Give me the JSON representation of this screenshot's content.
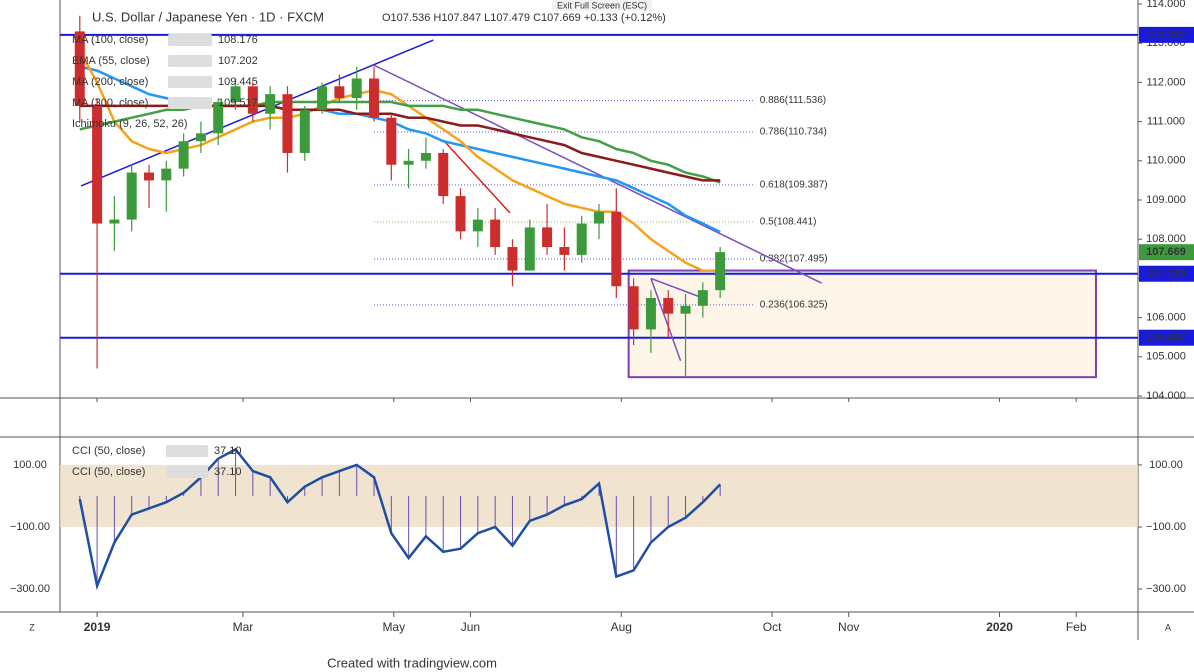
{
  "ui": {
    "exit": "Exit Full Screen (ESC)",
    "footer": "Created with tradingview.com",
    "left_btn": "Z",
    "right_btn": "A"
  },
  "chart_data": [
    {
      "type": "candlestick",
      "title": "U.S. Dollar / Japanese Yen · 1D · FXCM",
      "subtitle": "O107.536 H107.847 L107.479 C107.669 +0.133 (+0.12%)",
      "x": [
        -7,
        0,
        7,
        14,
        21,
        28,
        35,
        42,
        49,
        56,
        63,
        70,
        77,
        84,
        91,
        98,
        105,
        112,
        119,
        126,
        133,
        140,
        147,
        154,
        161,
        168,
        175,
        182,
        189,
        196,
        203,
        210,
        217,
        224,
        231,
        238,
        245,
        252
      ],
      "open": [
        113.3,
        111.4,
        108.4,
        108.5,
        109.7,
        109.5,
        109.8,
        110.5,
        110.7,
        111.5,
        111.9,
        111.2,
        111.7,
        110.2,
        111.3,
        111.9,
        111.6,
        112.1,
        111.1,
        109.9,
        110.0,
        110.2,
        109.1,
        108.2,
        108.5,
        107.8,
        107.2,
        108.3,
        107.8,
        107.6,
        108.4,
        108.7,
        106.8,
        105.7,
        106.5,
        106.1,
        106.3,
        106.7
      ],
      "high": [
        113.7,
        111.6,
        109.1,
        109.9,
        109.9,
        110.0,
        110.7,
        111.0,
        111.6,
        112.1,
        112.0,
        111.9,
        111.9,
        111.4,
        112.0,
        112.2,
        112.4,
        112.4,
        111.2,
        110.3,
        110.6,
        110.3,
        109.3,
        108.8,
        108.8,
        108.0,
        108.5,
        108.9,
        108.3,
        108.6,
        108.9,
        109.3,
        107.0,
        106.7,
        106.7,
        106.6,
        106.9,
        107.8
      ],
      "low": [
        111.0,
        104.7,
        107.7,
        108.2,
        108.8,
        108.7,
        109.6,
        110.2,
        110.4,
        111.3,
        111.0,
        110.8,
        109.7,
        110.0,
        111.2,
        111.5,
        111.3,
        111.0,
        109.5,
        109.3,
        109.8,
        108.9,
        108.0,
        107.8,
        107.6,
        106.8,
        107.2,
        107.6,
        107.2,
        107.4,
        108.0,
        106.5,
        105.3,
        105.1,
        105.5,
        104.5,
        106.0,
        106.5
      ],
      "close": [
        111.4,
        108.4,
        108.5,
        109.7,
        109.5,
        109.8,
        110.5,
        110.7,
        111.5,
        111.9,
        111.2,
        111.7,
        110.2,
        111.3,
        111.9,
        111.6,
        112.1,
        111.1,
        109.9,
        110.0,
        110.2,
        109.1,
        108.2,
        108.5,
        107.8,
        107.2,
        108.3,
        107.8,
        107.6,
        108.4,
        108.7,
        106.8,
        105.7,
        106.5,
        106.1,
        106.3,
        106.7,
        107.669
      ],
      "up_color": "#3c9a3c",
      "down_color": "#cc2e2e",
      "series": [
        {
          "name": "MA (100, close)",
          "legend_value": 108.176,
          "color": "#2196f3",
          "values": [
            112.4,
            112.3,
            112.1,
            111.9,
            111.7,
            111.6,
            111.5,
            111.4,
            111.4,
            111.4,
            111.4,
            111.4,
            111.3,
            111.3,
            111.3,
            111.2,
            111.2,
            111.1,
            111.0,
            110.8,
            110.7,
            110.5,
            110.4,
            110.3,
            110.2,
            110.1,
            110.0,
            109.9,
            109.8,
            109.7,
            109.6,
            109.5,
            109.3,
            109.1,
            108.9,
            108.6,
            108.4,
            108.18
          ]
        },
        {
          "name": "EMA (55, close)",
          "legend_value": 107.202,
          "color": "#f7a21b",
          "values": [
            112.8,
            112.0,
            111.0,
            110.5,
            110.3,
            110.2,
            110.3,
            110.4,
            110.6,
            110.8,
            111.0,
            111.1,
            111.1,
            111.2,
            111.4,
            111.6,
            111.7,
            111.8,
            111.7,
            111.4,
            111.1,
            110.8,
            110.5,
            110.1,
            109.8,
            109.5,
            109.3,
            109.1,
            108.9,
            108.8,
            108.7,
            108.7,
            108.4,
            108.0,
            107.7,
            107.4,
            107.2,
            107.2
          ]
        },
        {
          "name": "MA (200, close)",
          "legend_value": 109.445,
          "color": "#43a047",
          "values": [
            110.8,
            110.9,
            111.0,
            111.1,
            111.2,
            111.3,
            111.3,
            111.4,
            111.4,
            111.4,
            111.4,
            111.5,
            111.5,
            111.5,
            111.5,
            111.5,
            111.5,
            111.5,
            111.5,
            111.4,
            111.4,
            111.4,
            111.3,
            111.3,
            111.2,
            111.1,
            111.0,
            110.9,
            110.8,
            110.6,
            110.5,
            110.3,
            110.2,
            110.0,
            109.9,
            109.7,
            109.6,
            109.45
          ]
        },
        {
          "name": "MA (300, close)",
          "legend_value": 109.517,
          "color": "#8b1a1a",
          "values": [
            111.4,
            111.4,
            111.4,
            111.4,
            111.4,
            111.4,
            111.4,
            111.4,
            111.4,
            111.4,
            111.4,
            111.4,
            111.3,
            111.3,
            111.3,
            111.3,
            111.2,
            111.2,
            111.2,
            111.1,
            111.1,
            111.0,
            110.9,
            110.9,
            110.8,
            110.7,
            110.6,
            110.5,
            110.4,
            110.2,
            110.1,
            110.0,
            109.9,
            109.8,
            109.7,
            109.6,
            109.5,
            109.5
          ]
        }
      ],
      "studies": [
        "Ichimoku (9, 26, 52, 26)"
      ],
      "hlines": [
        {
          "value": 113.212,
          "color": "#1a1adb"
        },
        {
          "value": 107.119,
          "color": "#1a1adb"
        },
        {
          "value": 105.487,
          "color": "#1a1adb"
        }
      ],
      "last_price": 107.669,
      "last_color": "#3c9a3c",
      "fib_range": [
        112,
        266
      ],
      "fib": [
        {
          "value": 111.536,
          "label": "0.886(111.536)"
        },
        {
          "value": 110.734,
          "label": "0.786(110.734)"
        },
        {
          "value": 109.387,
          "label": "0.618(109.387)"
        },
        {
          "value": 108.441,
          "label": "0.5(108.441)"
        },
        {
          "value": 107.495,
          "label": "0.382(107.495)"
        },
        {
          "value": 106.325,
          "label": "0.236(106.325)"
        }
      ],
      "trendlines": [
        {
          "x": [
            -6.5,
            136
          ],
          "y": [
            109.36,
            113.08
          ],
          "color": "#1a1adb"
        },
        {
          "x": [
            112,
            293
          ],
          "y": [
            112.44,
            106.88
          ],
          "color": "#7b4fc0"
        },
        {
          "x": [
            140,
            167
          ],
          "y": [
            110.53,
            108.67
          ],
          "color": "#e02020"
        },
        {
          "x": [
            224,
            245
          ],
          "y": [
            107.0,
            106.5
          ],
          "color": "#7b4fc0"
        },
        {
          "x": [
            224,
            236
          ],
          "y": [
            107.0,
            104.9
          ],
          "color": "#7b4fc0"
        }
      ],
      "box": {
        "x": [
          215,
          404
        ],
        "y": [
          104.48,
          107.2
        ],
        "color": "#7e3fb0"
      },
      "xlim": [
        -15,
        421
      ],
      "xticks": [
        {
          "value": 0,
          "label": "2019"
        },
        {
          "value": 59,
          "label": "Mar"
        },
        {
          "value": 120,
          "label": "May"
        },
        {
          "value": 151,
          "label": "Jun"
        },
        {
          "value": 212,
          "label": "Aug"
        },
        {
          "value": 273,
          "label": "Oct"
        },
        {
          "value": 304,
          "label": "Nov"
        },
        {
          "value": 365,
          "label": "2020"
        },
        {
          "value": 396,
          "label": "Feb"
        }
      ],
      "ylim": [
        104,
        114
      ],
      "yticks": [
        {
          "value": 104,
          "label": "104.000"
        },
        {
          "value": 105,
          "label": "105.000"
        },
        {
          "value": 106,
          "label": "106.000"
        },
        {
          "value": 107,
          "label": "107.000"
        },
        {
          "value": 108,
          "label": "108.000"
        },
        {
          "value": 109,
          "label": "109.000"
        },
        {
          "value": 110,
          "label": "110.000"
        },
        {
          "value": 111,
          "label": "111.000"
        },
        {
          "value": 112,
          "label": "112.000"
        },
        {
          "value": 113,
          "label": "113.000"
        },
        {
          "value": 114,
          "label": "114.000"
        }
      ]
    },
    {
      "type": "line",
      "x": [
        -7,
        0,
        7,
        14,
        21,
        28,
        35,
        42,
        49,
        56,
        63,
        70,
        77,
        84,
        91,
        98,
        105,
        112,
        119,
        126,
        133,
        140,
        147,
        154,
        161,
        168,
        175,
        182,
        189,
        196,
        203,
        210,
        217,
        224,
        231,
        238,
        245,
        252
      ],
      "series": [
        {
          "name": "CCI (50, close)",
          "legend_value": "37.10",
          "color": "#1e4fa3",
          "style": "line",
          "values": [
            -10,
            -290,
            -150,
            -60,
            -40,
            -20,
            10,
            60,
            120,
            150,
            80,
            60,
            -20,
            30,
            60,
            80,
            100,
            60,
            -120,
            -200,
            -130,
            -180,
            -170,
            -120,
            -100,
            -160,
            -80,
            -60,
            -30,
            -10,
            40,
            -260,
            -240,
            -150,
            -100,
            -70,
            -20,
            37.1
          ]
        },
        {
          "name": "CCI (50, close)",
          "legend_value": "37.10",
          "color": "#6a4fb0",
          "style": "histogram",
          "values": [
            -10,
            -290,
            -150,
            -60,
            -40,
            -20,
            10,
            60,
            120,
            150,
            80,
            60,
            -20,
            30,
            60,
            80,
            100,
            60,
            -120,
            -200,
            -130,
            -180,
            -170,
            -120,
            -100,
            -160,
            -80,
            -60,
            -30,
            -10,
            40,
            -260,
            -240,
            -150,
            -100,
            -70,
            -20,
            37.1
          ]
        }
      ],
      "band": [
        -100,
        100
      ],
      "band_color": "#ecdcc4",
      "ylim": [
        -374,
        190
      ],
      "yticks": [
        {
          "value": 100,
          "label": "100.00"
        },
        {
          "value": -100,
          "label": "−100.00"
        },
        {
          "value": -300,
          "label": "−300.00"
        }
      ]
    }
  ]
}
